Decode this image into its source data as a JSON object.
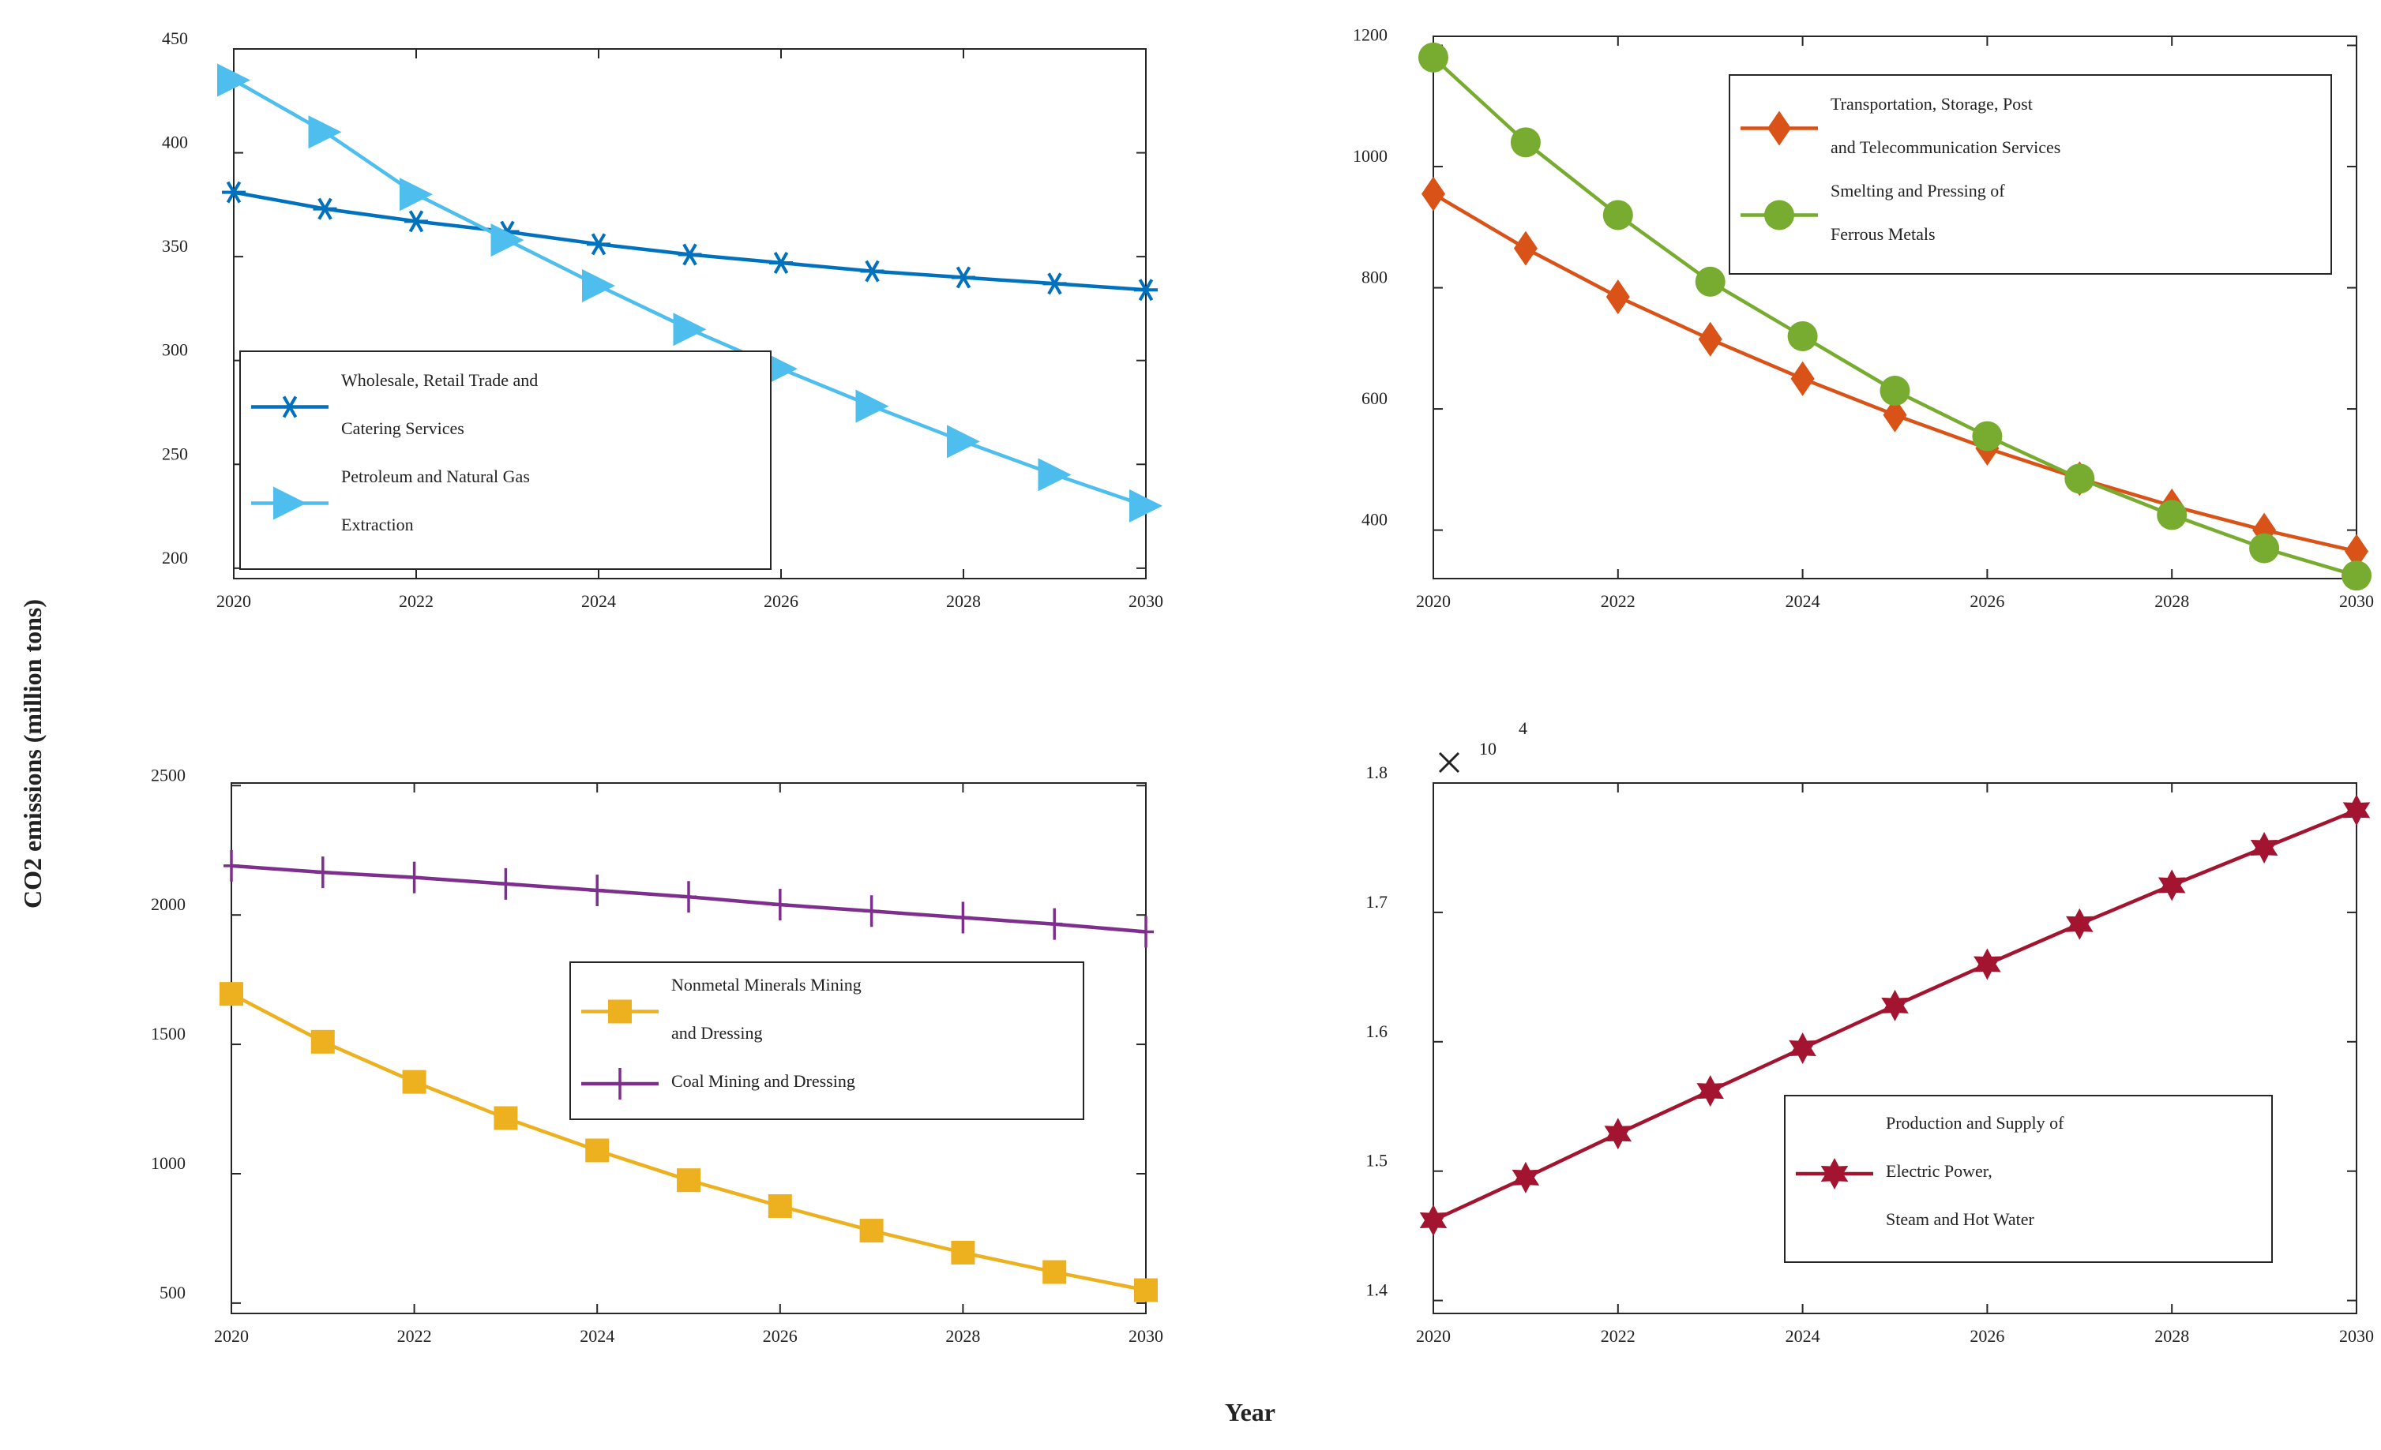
{
  "figure": {
    "ylabel": "CO2 emissions (million tons)",
    "xlabel": "Year"
  },
  "chart_data": [
    {
      "type": "line",
      "x": [
        2020,
        2021,
        2022,
        2023,
        2024,
        2025,
        2026,
        2027,
        2028,
        2029,
        2030
      ],
      "xlim": [
        2020,
        2030
      ],
      "xticks": [
        "2020",
        "2022",
        "2024",
        "2026",
        "2028",
        "2030"
      ],
      "ylim": [
        195,
        450
      ],
      "yticks": [
        "200",
        "250",
        "300",
        "350",
        "400",
        "450"
      ],
      "legend_position": "bottom-left",
      "series": [
        {
          "name": "Wholesale, Retail Trade and Catering Services",
          "legend_lines": [
            "Wholesale, Retail Trade and",
            "Catering Services"
          ],
          "marker": "asterisk",
          "color": "#0072BD",
          "values": [
            381,
            373,
            367,
            362,
            356,
            351,
            347,
            343,
            340,
            337,
            334
          ]
        },
        {
          "name": "Petroleum and Natural Gas Extraction",
          "legend_lines": [
            "Petroleum and Natural Gas",
            "Extraction"
          ],
          "marker": "triangle-right",
          "color": "#4DBEEE",
          "values": [
            435,
            410,
            380,
            358,
            336,
            315,
            296,
            278,
            261,
            245,
            230
          ]
        }
      ]
    },
    {
      "type": "line",
      "x": [
        2020,
        2021,
        2022,
        2023,
        2024,
        2025,
        2026,
        2027,
        2028,
        2029,
        2030
      ],
      "xlim": [
        2020,
        2030
      ],
      "xticks": [
        "2020",
        "2022",
        "2024",
        "2026",
        "2028",
        "2030"
      ],
      "ylim": [
        320,
        1215
      ],
      "yticks": [
        "400",
        "600",
        "800",
        "1000",
        "1200"
      ],
      "legend_position": "top-right",
      "series": [
        {
          "name": "Transportation, Storage, Post and Telecommunication Services",
          "legend_lines": [
            "Transportation, Storage, Post",
            "and Telecommunication Services"
          ],
          "marker": "diamond",
          "color": "#D95319",
          "values": [
            955,
            865,
            785,
            715,
            650,
            590,
            535,
            485,
            440,
            400,
            365
          ]
        },
        {
          "name": "Smelting and Pressing of Ferrous Metals",
          "legend_lines": [
            "Smelting and Pressing of",
            "Ferrous Metals"
          ],
          "marker": "circle",
          "color": "#77AC30",
          "values": [
            1180,
            1040,
            920,
            810,
            720,
            630,
            555,
            485,
            425,
            370,
            325
          ]
        }
      ]
    },
    {
      "type": "line",
      "x": [
        2020,
        2021,
        2022,
        2023,
        2024,
        2025,
        2026,
        2027,
        2028,
        2029,
        2030
      ],
      "xlim": [
        2020,
        2030
      ],
      "xticks": [
        "2020",
        "2022",
        "2024",
        "2026",
        "2028",
        "2030"
      ],
      "ylim": [
        460,
        2510
      ],
      "yticks": [
        "500",
        "1000",
        "1500",
        "2000",
        "2500"
      ],
      "legend_position": "center-right",
      "series": [
        {
          "name": "Nonmetal Minerals Mining and Dressing",
          "legend_lines": [
            "Nonmetal Minerals Mining",
            "and Dressing"
          ],
          "marker": "square",
          "color": "#EDB120",
          "values": [
            1695,
            1510,
            1355,
            1215,
            1090,
            975,
            875,
            780,
            695,
            620,
            550
          ]
        },
        {
          "name": "Coal Mining and Dressing",
          "legend_lines": [
            "Coal Mining and Dressing"
          ],
          "marker": "plus",
          "color": "#7E2F8E",
          "values": [
            2190,
            2165,
            2145,
            2120,
            2095,
            2070,
            2040,
            2015,
            1990,
            1965,
            1935
          ]
        }
      ]
    },
    {
      "type": "line",
      "x": [
        2020,
        2021,
        2022,
        2023,
        2024,
        2025,
        2026,
        2027,
        2028,
        2029,
        2030
      ],
      "xlim": [
        2020,
        2030
      ],
      "xticks": [
        "2020",
        "2022",
        "2024",
        "2026",
        "2028",
        "2030"
      ],
      "ylim": [
        1.39,
        1.8
      ],
      "yticks": [
        "1.4",
        "1.5",
        "1.6",
        "1.7",
        "1.8"
      ],
      "multiplier_base": "10",
      "multiplier_exp": "4",
      "legend_position": "bottom-right",
      "series": [
        {
          "name": "Production and Supply of Electric Power, Steam and Hot Water",
          "legend_lines": [
            "Production and Supply of",
            "Electric Power,",
            "Steam and Hot Water"
          ],
          "marker": "hexagram",
          "color": "#A2142F",
          "values": [
            1.462,
            1.495,
            1.529,
            1.562,
            1.595,
            1.628,
            1.66,
            1.691,
            1.721,
            1.75,
            1.779
          ]
        }
      ]
    }
  ]
}
